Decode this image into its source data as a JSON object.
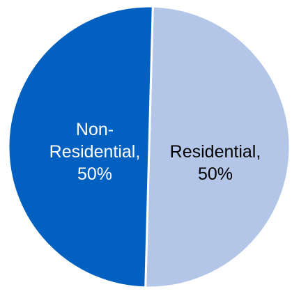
{
  "chart_data": {
    "type": "pie",
    "title": "",
    "slices": [
      {
        "label_lines": [
          "Residential,",
          "50%"
        ],
        "category": "Residential",
        "value": 50,
        "color": "#B4C6E7",
        "label_color": "#000000"
      },
      {
        "label_lines": [
          "Non-",
          "Residential,",
          "50%"
        ],
        "category": "Non-Residential",
        "value": 50,
        "color": "#0260C0",
        "label_color": "#ffffff"
      }
    ],
    "start_angle_deg": 1.5,
    "legend": "none"
  }
}
